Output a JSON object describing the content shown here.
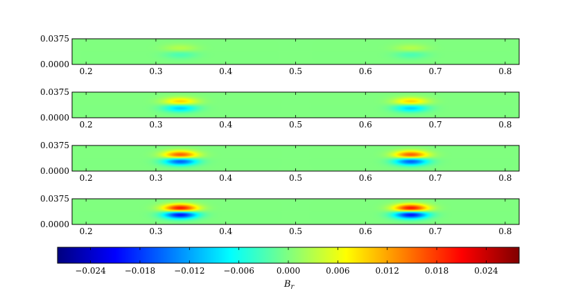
{
  "chart_data": {
    "type": "heatmap",
    "quantity_label": "B",
    "quantity_subscript": "r",
    "colormap": "jet",
    "panels": [
      {
        "amplitude": 0.004,
        "x_range": [
          0.18,
          0.82
        ],
        "y_range": [
          0.0,
          0.0375
        ]
      },
      {
        "amplitude": 0.013,
        "x_range": [
          0.18,
          0.82
        ],
        "y_range": [
          0.0,
          0.0375
        ]
      },
      {
        "amplitude": 0.022,
        "x_range": [
          0.18,
          0.82
        ],
        "y_range": [
          0.0,
          0.0375
        ]
      },
      {
        "amplitude": 0.028,
        "x_range": [
          0.18,
          0.82
        ],
        "y_range": [
          0.0,
          0.0375
        ]
      }
    ],
    "features": [
      {
        "x_center": 0.335,
        "x_width": 0.024,
        "positive_y_center": 0.029,
        "negative_y_center": 0.009
      },
      {
        "x_center": 0.665,
        "x_width": 0.024,
        "positive_y_center": 0.029,
        "negative_y_center": 0.009
      }
    ],
    "x_ticks": [
      0.2,
      0.3,
      0.4,
      0.5,
      0.6,
      0.7,
      0.8
    ],
    "x_tick_labels": [
      "0.2",
      "0.3",
      "0.4",
      "0.5",
      "0.6",
      "0.7",
      "0.8"
    ],
    "y_ticks": [
      0.0,
      0.0375
    ],
    "y_tick_labels": [
      "0.0000",
      "0.0375"
    ],
    "colorbar": {
      "range": [
        -0.028,
        0.028
      ],
      "ticks": [
        -0.024,
        -0.018,
        -0.012,
        -0.006,
        0.0,
        0.006,
        0.012,
        0.018,
        0.024
      ],
      "tick_labels": [
        "−0.024",
        "−0.018",
        "−0.012",
        "−0.006",
        "0.000",
        "0.006",
        "0.012",
        "0.018",
        "0.024"
      ]
    }
  }
}
